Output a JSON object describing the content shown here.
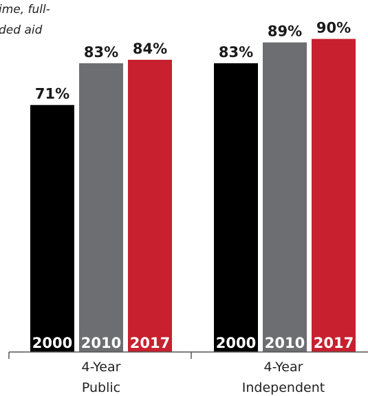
{
  "note": {
    "line1": "ime, full-",
    "line2": "ded aid"
  },
  "colors": {
    "2000": "#000000",
    "2010": "#6d6e71",
    "2017": "#c8202f",
    "axis": "#555555",
    "text": "#1a1a1a"
  },
  "chart_data": {
    "type": "bar",
    "categories": [
      "4-Year Public",
      "4-Year Independent"
    ],
    "category_lines": [
      [
        "4-Year",
        "Public"
      ],
      [
        "4-Year",
        "Independent"
      ]
    ],
    "series": [
      {
        "name": "2000",
        "values": [
          71,
          83
        ]
      },
      {
        "name": "2010",
        "values": [
          83,
          89
        ]
      },
      {
        "name": "2017",
        "values": [
          84,
          90
        ]
      }
    ],
    "value_labels": [
      [
        "71%",
        "83%"
      ],
      [
        "83%",
        "89%"
      ],
      [
        "84%",
        "90%"
      ]
    ],
    "title": "",
    "xlabel": "",
    "ylabel": "",
    "ylim": [
      0,
      100
    ],
    "grid": false,
    "legend": "series names printed inside bar bases"
  }
}
